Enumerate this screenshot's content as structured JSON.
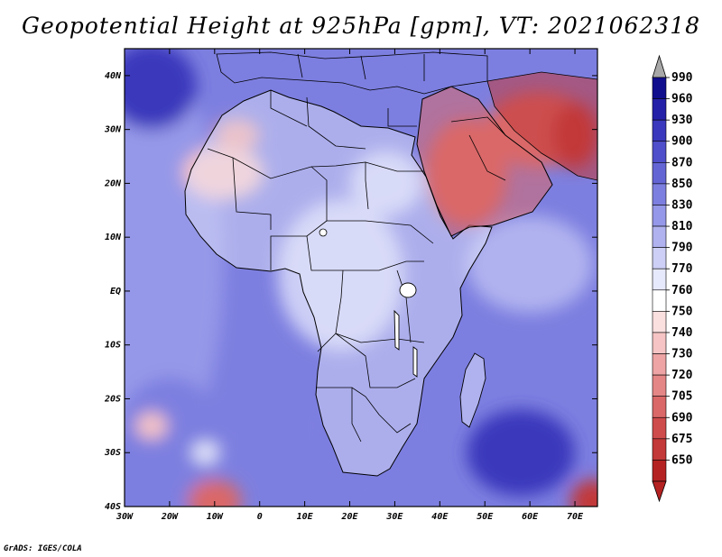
{
  "title": "Geopotential Height at 925hPa [gpm], VT: 2021062318",
  "credit": "GrADS: IGES/COLA",
  "map": {
    "extent": {
      "lon_min": -30,
      "lon_max": 75,
      "lat_min": -40,
      "lat_max": 45
    },
    "lat_ticks": [
      {
        "lat": 40,
        "label": "40N"
      },
      {
        "lat": 30,
        "label": "30N"
      },
      {
        "lat": 20,
        "label": "20N"
      },
      {
        "lat": 10,
        "label": "10N"
      },
      {
        "lat": 0,
        "label": "EQ"
      },
      {
        "lat": -10,
        "label": "10S"
      },
      {
        "lat": -20,
        "label": "20S"
      },
      {
        "lat": -30,
        "label": "30S"
      },
      {
        "lat": -40,
        "label": "40S"
      }
    ],
    "lon_ticks": [
      {
        "lon": -30,
        "label": "30W"
      },
      {
        "lon": -20,
        "label": "20W"
      },
      {
        "lon": -10,
        "label": "10W"
      },
      {
        "lon": 0,
        "label": "0"
      },
      {
        "lon": 10,
        "label": "10E"
      },
      {
        "lon": 20,
        "label": "20E"
      },
      {
        "lon": 30,
        "label": "30E"
      },
      {
        "lon": 40,
        "label": "40E"
      },
      {
        "lon": 50,
        "label": "50E"
      },
      {
        "lon": 60,
        "label": "60E"
      },
      {
        "lon": 70,
        "label": "70E"
      }
    ]
  },
  "colorbar": {
    "labels": [
      "990",
      "960",
      "930",
      "900",
      "870",
      "850",
      "830",
      "810",
      "790",
      "770",
      "760",
      "750",
      "740",
      "730",
      "720",
      "705",
      "690",
      "675",
      "650"
    ],
    "colors": [
      "#110e8e",
      "#2520a8",
      "#3a38bc",
      "#4f4fcb",
      "#6465d5",
      "#7d7fe0",
      "#9598e8",
      "#b0b2ef",
      "#cdcff6",
      "#e6e8fb",
      "#ffffff",
      "#fbe0e0",
      "#f6c4c4",
      "#eea4a4",
      "#e58686",
      "#da6868",
      "#cf4c4c",
      "#c33838",
      "#b52222"
    ],
    "over_color": "#a8a8a8",
    "under_color": "#b52222"
  },
  "regions": [
    {
      "name": "ocean-west-base",
      "lon": -24,
      "lat": 5,
      "rx": 16,
      "ry": 38,
      "color": "#9598e8"
    },
    {
      "name": "atlantic-high-north",
      "lon": -24,
      "lat": 38,
      "rx": 10,
      "ry": 8,
      "color": "#3a38bc"
    },
    {
      "name": "south-atlantic-low",
      "lon": -20,
      "lat": -28,
      "rx": 12,
      "ry": 12,
      "color": "#7d7fe0"
    },
    {
      "name": "south-atlantic-spot",
      "lon": -24,
      "lat": -25,
      "rx": 3.5,
      "ry": 2.5,
      "color": "#f6c4c4"
    },
    {
      "name": "south-atlantic-spot2",
      "lon": -12,
      "lat": -30,
      "rx": 3,
      "ry": 2,
      "color": "#e6e8fb"
    },
    {
      "name": "sw-corner-red",
      "lon": -10,
      "lat": -39,
      "rx": 6,
      "ry": 4,
      "color": "#da6868"
    },
    {
      "name": "central-africa",
      "lon": 18,
      "lat": 3,
      "rx": 14,
      "ry": 14,
      "color": "#cdcff6"
    },
    {
      "name": "sahara-west",
      "lon": -8,
      "lat": 22,
      "rx": 9,
      "ry": 5,
      "color": "#f6c4c4"
    },
    {
      "name": "sahara-north",
      "lon": -5,
      "lat": 29,
      "rx": 5,
      "ry": 3,
      "color": "#eea4a4"
    },
    {
      "name": "mediterranean",
      "lon": 18,
      "lat": 37,
      "rx": 12,
      "ry": 5,
      "color": "#7d7fe0"
    },
    {
      "name": "east-sahara",
      "lon": 28,
      "lat": 20,
      "rx": 8,
      "ry": 6,
      "color": "#cdcff6"
    },
    {
      "name": "arabia-heat",
      "lon": 46,
      "lat": 22,
      "rx": 9,
      "ry": 10,
      "color": "#da6868"
    },
    {
      "name": "iran-heat",
      "lon": 62,
      "lat": 30,
      "rx": 12,
      "ry": 7,
      "color": "#da6868"
    },
    {
      "name": "pakistan-heat",
      "lon": 70,
      "lat": 29,
      "rx": 5,
      "ry": 6,
      "color": "#c33838"
    },
    {
      "name": "indian-ocean-north",
      "lon": 60,
      "lat": 5,
      "rx": 14,
      "ry": 9,
      "color": "#b0b2ef"
    },
    {
      "name": "indian-ocean-high",
      "lon": 58,
      "lat": -30,
      "rx": 12,
      "ry": 8,
      "color": "#3a38bc"
    },
    {
      "name": "se-corner-red",
      "lon": 74,
      "lat": -39,
      "rx": 5,
      "ry": 4,
      "color": "#c33838"
    },
    {
      "name": "southern-africa",
      "lon": 24,
      "lat": -25,
      "rx": 10,
      "ry": 10,
      "color": "#7d7fe0"
    }
  ]
}
